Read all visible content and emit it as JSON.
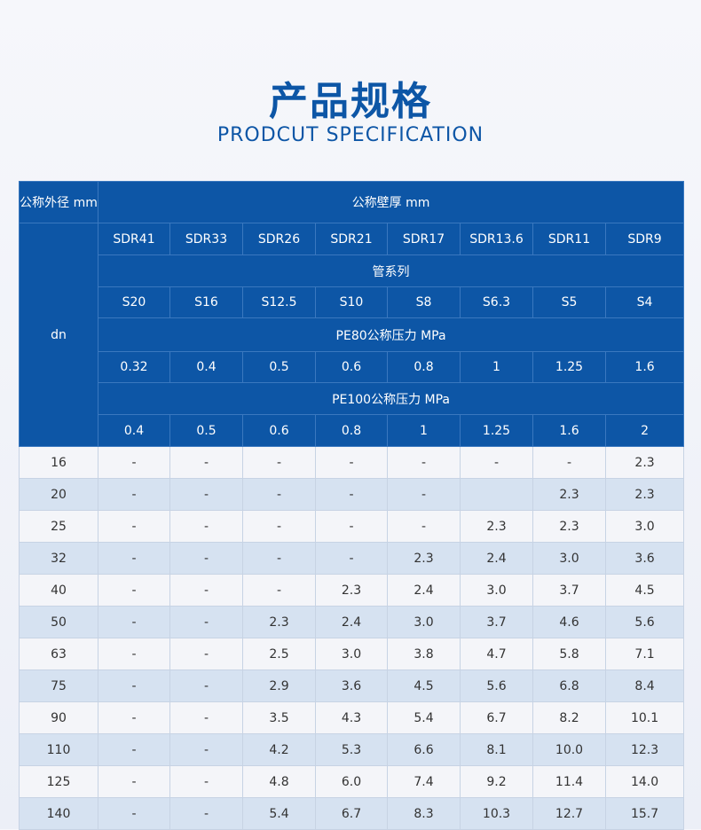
{
  "header": {
    "title": "产品规格",
    "subtitle": "PRODCUT SPECIFICATION"
  },
  "table": {
    "corner": "公称外径 mm",
    "dn_label": "dn",
    "wall_label": "公称壁厚 mm",
    "sdr": [
      "SDR41",
      "SDR33",
      "SDR26",
      "SDR21",
      "SDR17",
      "SDR13.6",
      "SDR11",
      "SDR9"
    ],
    "series_label": "管系列",
    "s": [
      "S20",
      "S16",
      "S12.5",
      "S10",
      "S8",
      "S6.3",
      "S5",
      "S4"
    ],
    "pe80_label": "PE80公称压力 MPa",
    "pe80": [
      "0.32",
      "0.4",
      "0.5",
      "0.6",
      "0.8",
      "1",
      "1.25",
      "1.6"
    ],
    "pe100_label": "PE100公称压力 MPa",
    "pe100": [
      "0.4",
      "0.5",
      "0.6",
      "0.8",
      "1",
      "1.25",
      "1.6",
      "2"
    ],
    "rows": [
      [
        "16",
        "-",
        "-",
        "-",
        "-",
        "-",
        "-",
        "-",
        "2.3"
      ],
      [
        "20",
        "-",
        "-",
        "-",
        "-",
        "-",
        null,
        "2.3",
        "2.3"
      ],
      [
        "25",
        "-",
        "-",
        "-",
        "-",
        "-",
        "2.3",
        "2.3",
        "3.0"
      ],
      [
        "32",
        "-",
        "-",
        "-",
        "-",
        "2.3",
        "2.4",
        "3.0",
        "3.6"
      ],
      [
        "40",
        "-",
        "-",
        "-",
        "2.3",
        "2.4",
        "3.0",
        "3.7",
        "4.5"
      ],
      [
        "50",
        "-",
        "-",
        "2.3",
        "2.4",
        "3.0",
        "3.7",
        "4.6",
        "5.6"
      ],
      [
        "63",
        "-",
        "-",
        "2.5",
        "3.0",
        "3.8",
        "4.7",
        "5.8",
        "7.1"
      ],
      [
        "75",
        "-",
        "-",
        "2.9",
        "3.6",
        "4.5",
        "5.6",
        "6.8",
        "8.4"
      ],
      [
        "90",
        "-",
        "-",
        "3.5",
        "4.3",
        "5.4",
        "6.7",
        "8.2",
        "10.1"
      ],
      [
        "110",
        "-",
        "-",
        "4.2",
        "5.3",
        "6.6",
        "8.1",
        "10.0",
        "12.3"
      ],
      [
        "125",
        "-",
        "-",
        "4.8",
        "6.0",
        "7.4",
        "9.2",
        "11.4",
        "14.0"
      ],
      [
        "140",
        "-",
        "-",
        "5.4",
        "6.7",
        "8.3",
        "10.3",
        "12.7",
        "15.7"
      ]
    ]
  }
}
